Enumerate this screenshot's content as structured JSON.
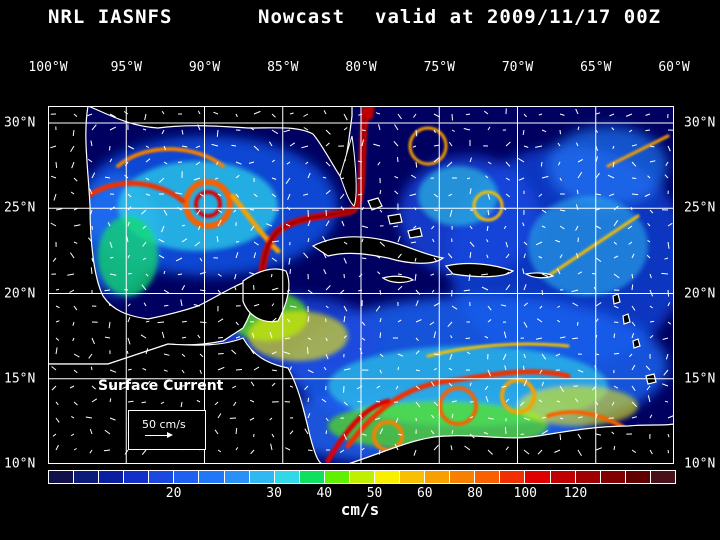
{
  "header": {
    "left": "NRL IASNFS",
    "center": "Nowcast",
    "right": "valid at 2009/11/17 00Z"
  },
  "map": {
    "lon_labels": [
      "100°W",
      "95°W",
      "90°W",
      "85°W",
      "80°W",
      "75°W",
      "70°W",
      "65°W",
      "60°W"
    ],
    "lat_labels": [
      "30°N",
      "25°N",
      "20°N",
      "15°N",
      "10°N"
    ],
    "lon_range": [
      -100,
      -60
    ],
    "lat_range": [
      10,
      31
    ],
    "overlay_title": "Surface Current",
    "reference_vector_label": "50 cm/s",
    "land_color": "#000000",
    "coastline_color": "#ffffff",
    "grid_color": "#ffffff"
  },
  "colorbar": {
    "colors": [
      "#10104a",
      "#0c1a78",
      "#0a1fa0",
      "#1030c8",
      "#1a48e0",
      "#2060f0",
      "#2078f8",
      "#2890f8",
      "#30b8f0",
      "#30d8e8",
      "#10e060",
      "#60f000",
      "#c0f000",
      "#f8f000",
      "#f8c000",
      "#f8a000",
      "#f88000",
      "#f86000",
      "#f03000",
      "#e00000",
      "#c00000",
      "#a00000",
      "#800000",
      "#600000",
      "#481018"
    ],
    "tick_labels": [
      {
        "value": "20",
        "position": 5
      },
      {
        "value": "30",
        "position": 9
      },
      {
        "value": "40",
        "position": 11
      },
      {
        "value": "50",
        "position": 13
      },
      {
        "value": "60",
        "position": 15
      },
      {
        "value": "80",
        "position": 17
      },
      {
        "value": "100",
        "position": 19
      },
      {
        "value": "120",
        "position": 21
      }
    ],
    "unit": "cm/s"
  }
}
